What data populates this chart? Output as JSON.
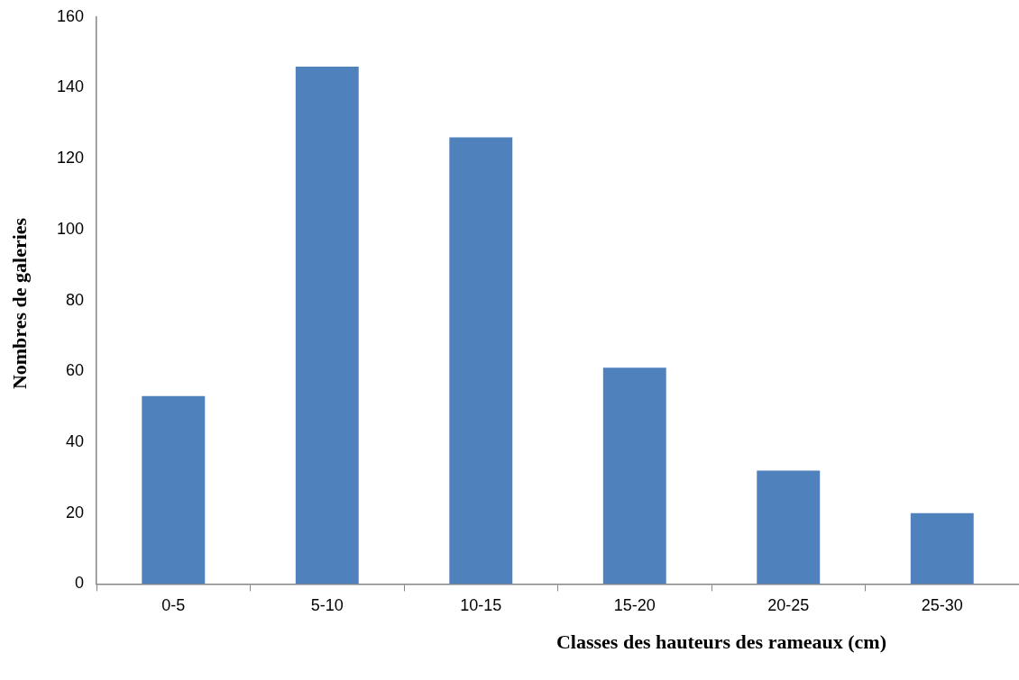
{
  "chart_data": {
    "type": "bar",
    "xlabel": "Classes des hauteurs des rameaux (cm)",
    "ylabel": "Nombres de galeries",
    "categories": [
      "0-5",
      "5-10",
      "10-15",
      "15-20",
      "20-25",
      "25-30"
    ],
    "values": [
      53,
      146,
      126,
      61,
      32,
      20
    ],
    "color": "#4f81bd",
    "ylim": [
      0,
      160
    ],
    "yticks": [
      0,
      20,
      40,
      60,
      80,
      100,
      120,
      140,
      160
    ],
    "grid": false,
    "legend": false
  }
}
